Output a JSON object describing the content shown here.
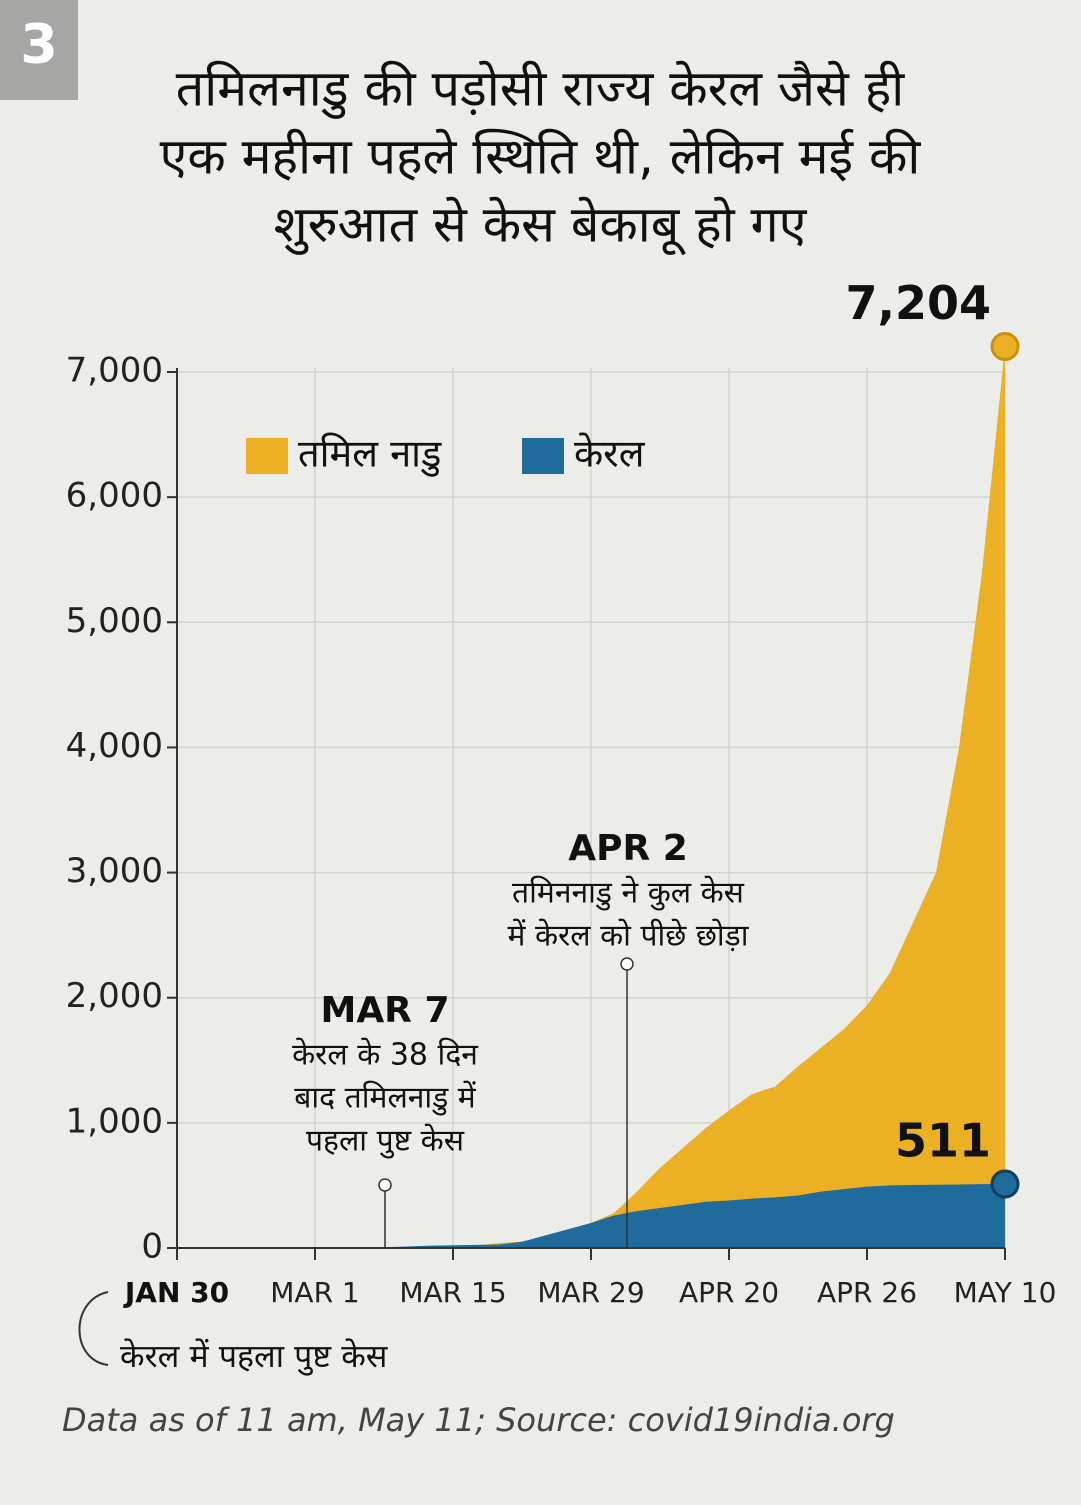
{
  "badge": "3",
  "chart_data": {
    "type": "area",
    "title": [
      "तमिलनाडु की पड़ोसी राज्य केरल जैसे ही",
      "एक महीना पहले स्थिति थी, लेकिन मई की",
      "शुरुआत से केस बेकाबू हो गए"
    ],
    "categories": [
      "JAN 30",
      null,
      null,
      null,
      null,
      null,
      "MAR 1",
      null,
      null,
      null,
      null,
      null,
      "MAR 15",
      null,
      null,
      null,
      null,
      null,
      "MAR 29",
      null,
      null,
      null,
      null,
      null,
      "APR 20",
      null,
      null,
      null,
      null,
      null,
      "APR 26",
      null,
      null,
      null,
      null,
      null,
      "MAY 10"
    ],
    "series": [
      {
        "name": "तमिल नाडु",
        "color": "#ebb024",
        "values": [
          0,
          0,
          0,
          0,
          0,
          0,
          0,
          0,
          0,
          1,
          1,
          2,
          5,
          20,
          40,
          50,
          70,
          120,
          200,
          280,
          450,
          640,
          800,
          960,
          1100,
          1230,
          1290,
          1450,
          1600,
          1750,
          1940,
          2200,
          2600,
          3000,
          4000,
          5400,
          7204
        ],
        "value_labels": [
          null,
          null,
          null,
          null,
          null,
          null,
          null,
          null,
          null,
          null,
          null,
          null,
          null,
          null,
          null,
          null,
          null,
          null,
          null,
          null,
          null,
          null,
          null,
          null,
          null,
          null,
          null,
          null,
          null,
          null,
          null,
          null,
          null,
          null,
          null,
          null,
          "7,204"
        ]
      },
      {
        "name": "केरल",
        "color": "#1f6b9c",
        "values": [
          1,
          1,
          3,
          3,
          3,
          3,
          3,
          3,
          5,
          6,
          12,
          19,
          22,
          25,
          27,
          50,
          100,
          150,
          200,
          260,
          295,
          320,
          345,
          370,
          380,
          395,
          405,
          420,
          450,
          470,
          490,
          500,
          503,
          505,
          507,
          510,
          511
        ]
      }
    ],
    "ylim": [
      0,
      7000
    ],
    "yticks": [
      0,
      {
        "value": 1000,
        "label": "1,000"
      },
      {
        "value": 2000,
        "label": "2,000"
      },
      {
        "value": 3000,
        "label": "3,000"
      },
      {
        "value": 4000,
        "label": "4,000"
      },
      {
        "value": 5000,
        "label": "5,000"
      },
      {
        "value": 6000,
        "label": "6,000"
      },
      {
        "value": 7000,
        "label": "7,000"
      }
    ],
    "grid": true,
    "annotations": [
      {
        "title": "MAR 7",
        "text": [
          "केरल के 38 दिन",
          "बाद तमिलनाडु में",
          "पहला पुष्ट केस"
        ]
      },
      {
        "title": "APR 2",
        "text": [
          "तमिननाडु ने कुल केस",
          "में केरल को पीछे छोड़ा"
        ]
      },
      {
        "text": [
          "केरल में पहला पुष्ट केस"
        ]
      }
    ],
    "source": "Data as of 11 am, May 11; Source: covid19india.org"
  }
}
